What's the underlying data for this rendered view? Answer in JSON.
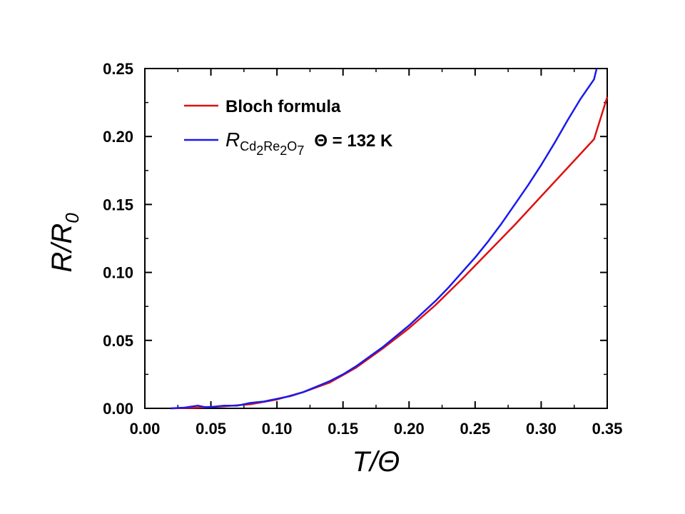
{
  "chart_data": {
    "type": "line",
    "xlabel": "T/Θ",
    "ylabel": "R/R0",
    "xlim": [
      0.0,
      0.35
    ],
    "ylim": [
      0.0,
      0.25
    ],
    "xticks": [
      "0.00",
      "0.05",
      "0.10",
      "0.15",
      "0.20",
      "0.25",
      "0.30",
      "0.35"
    ],
    "yticks": [
      "0.00",
      "0.05",
      "0.10",
      "0.15",
      "0.20",
      "0.25"
    ],
    "legend_position": "top-left",
    "grid": false,
    "series": [
      {
        "name": "Bloch formula",
        "color": "#dd1111",
        "x": [
          0.02,
          0.04,
          0.06,
          0.08,
          0.1,
          0.12,
          0.14,
          0.16,
          0.18,
          0.2,
          0.22,
          0.24,
          0.26,
          0.28,
          0.3,
          0.32,
          0.34,
          0.35
        ],
        "y": [
          0.0,
          0.0005,
          0.0015,
          0.003,
          0.0065,
          0.012,
          0.019,
          0.03,
          0.044,
          0.059,
          0.076,
          0.095,
          0.115,
          0.135,
          0.156,
          0.177,
          0.198,
          0.229
        ]
      },
      {
        "name": "R Cd2Re2O7  Θ = 132 K",
        "color": "#1a1aee",
        "x": [
          0.02,
          0.03,
          0.04,
          0.045,
          0.05,
          0.06,
          0.07,
          0.08,
          0.09,
          0.1,
          0.11,
          0.12,
          0.13,
          0.14,
          0.15,
          0.16,
          0.17,
          0.18,
          0.19,
          0.2,
          0.21,
          0.22,
          0.23,
          0.24,
          0.25,
          0.26,
          0.27,
          0.28,
          0.29,
          0.3,
          0.31,
          0.32,
          0.33,
          0.34,
          0.342
        ],
        "y": [
          0.0,
          0.0005,
          0.002,
          0.001,
          0.001,
          0.002,
          0.002,
          0.004,
          0.005,
          0.007,
          0.009,
          0.012,
          0.016,
          0.02,
          0.025,
          0.031,
          0.038,
          0.045,
          0.053,
          0.061,
          0.07,
          0.079,
          0.089,
          0.1,
          0.111,
          0.123,
          0.136,
          0.15,
          0.164,
          0.179,
          0.195,
          0.212,
          0.228,
          0.242,
          0.25
        ]
      }
    ],
    "legend": {
      "bloch_label": "Bloch formula",
      "data_label_R": "R",
      "data_label_formula_parts": [
        "Cd",
        "2",
        "Re",
        "2",
        "O",
        "7"
      ],
      "theta_label": "Θ = 132 K"
    }
  }
}
